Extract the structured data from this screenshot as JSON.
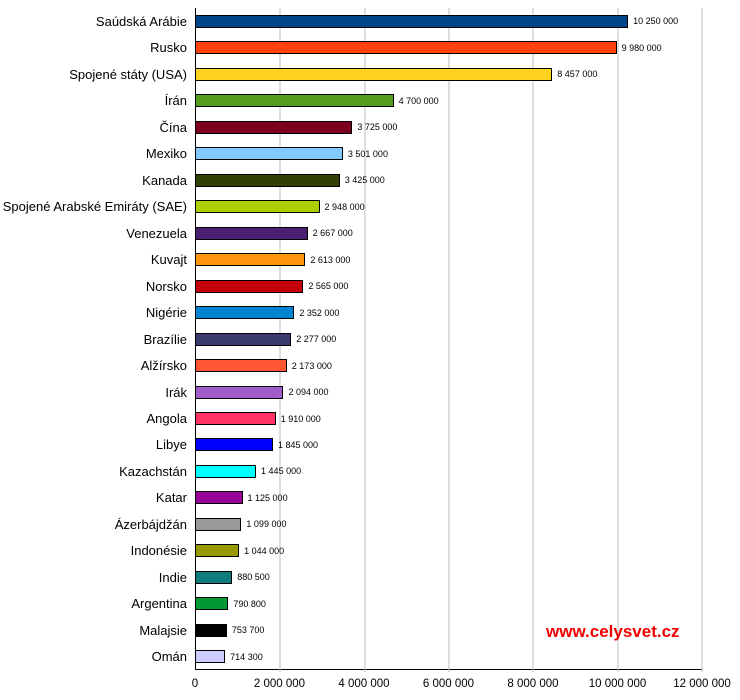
{
  "chart_data": {
    "type": "bar",
    "orientation": "horizontal",
    "title": "",
    "xlabel": "",
    "ylabel": "",
    "xlim": [
      0,
      12000000
    ],
    "grid": true,
    "legend": false,
    "watermark": "www.celysvet.cz",
    "watermark_color": "#f00000",
    "categories": [
      "Saúdská Arábie",
      "Rusko",
      "Spojené státy (USA)",
      "Írán",
      "Čína",
      "Mexiko",
      "Kanada",
      "Spojené Arabské Emiráty (SAE)",
      "Venezuela",
      "Kuvajt",
      "Norsko",
      "Nigérie",
      "Brazílie",
      "Alžírsko",
      "Irák",
      "Angola",
      "Libye",
      "Kazachstán",
      "Katar",
      "Ázerbájdžán",
      "Indonésie",
      "Indie",
      "Argentina",
      "Malajsie",
      "Omán"
    ],
    "values": [
      10250000,
      9980000,
      8457000,
      4700000,
      3725000,
      3501000,
      3425000,
      2948000,
      2667000,
      2613000,
      2565000,
      2352000,
      2277000,
      2173000,
      2094000,
      1910000,
      1845000,
      1445000,
      1125000,
      1099000,
      1044000,
      880500,
      790800,
      753700,
      714300
    ],
    "value_labels": [
      "10 250 000",
      "9 980 000",
      "8 457 000",
      "4 700 000",
      "3 725 000",
      "3 501 000",
      "3 425 000",
      "2 948 000",
      "2 667 000",
      "2 613 000",
      "2 565 000",
      "2 352 000",
      "2 277 000",
      "2 173 000",
      "2 094 000",
      "1 910 000",
      "1 845 000",
      "1 445 000",
      "1 125 000",
      "1 099 000",
      "1 044 000",
      "880 500",
      "790 800",
      "753 700",
      "714 300"
    ],
    "colors": [
      "#004586",
      "#ff420e",
      "#ffd320",
      "#579d1c",
      "#7e0021",
      "#83caff",
      "#314004",
      "#aecf00",
      "#4b1f6f",
      "#ff950e",
      "#c5000b",
      "#0084d1",
      "#3b3b6e",
      "#ff5733",
      "#a05cc8",
      "#ff3366",
      "#0000ff",
      "#00ffff",
      "#990099",
      "#999999",
      "#999900",
      "#0e7c7c",
      "#009933",
      "#000000",
      "#ccccff"
    ],
    "x_ticks": [
      0,
      2000000,
      4000000,
      6000000,
      8000000,
      10000000,
      12000000
    ],
    "x_tick_labels": [
      "0",
      "2 000 000",
      "4 000 000",
      "6 000 000",
      "8 000 000",
      "10 000 000",
      "12 000 000"
    ]
  }
}
